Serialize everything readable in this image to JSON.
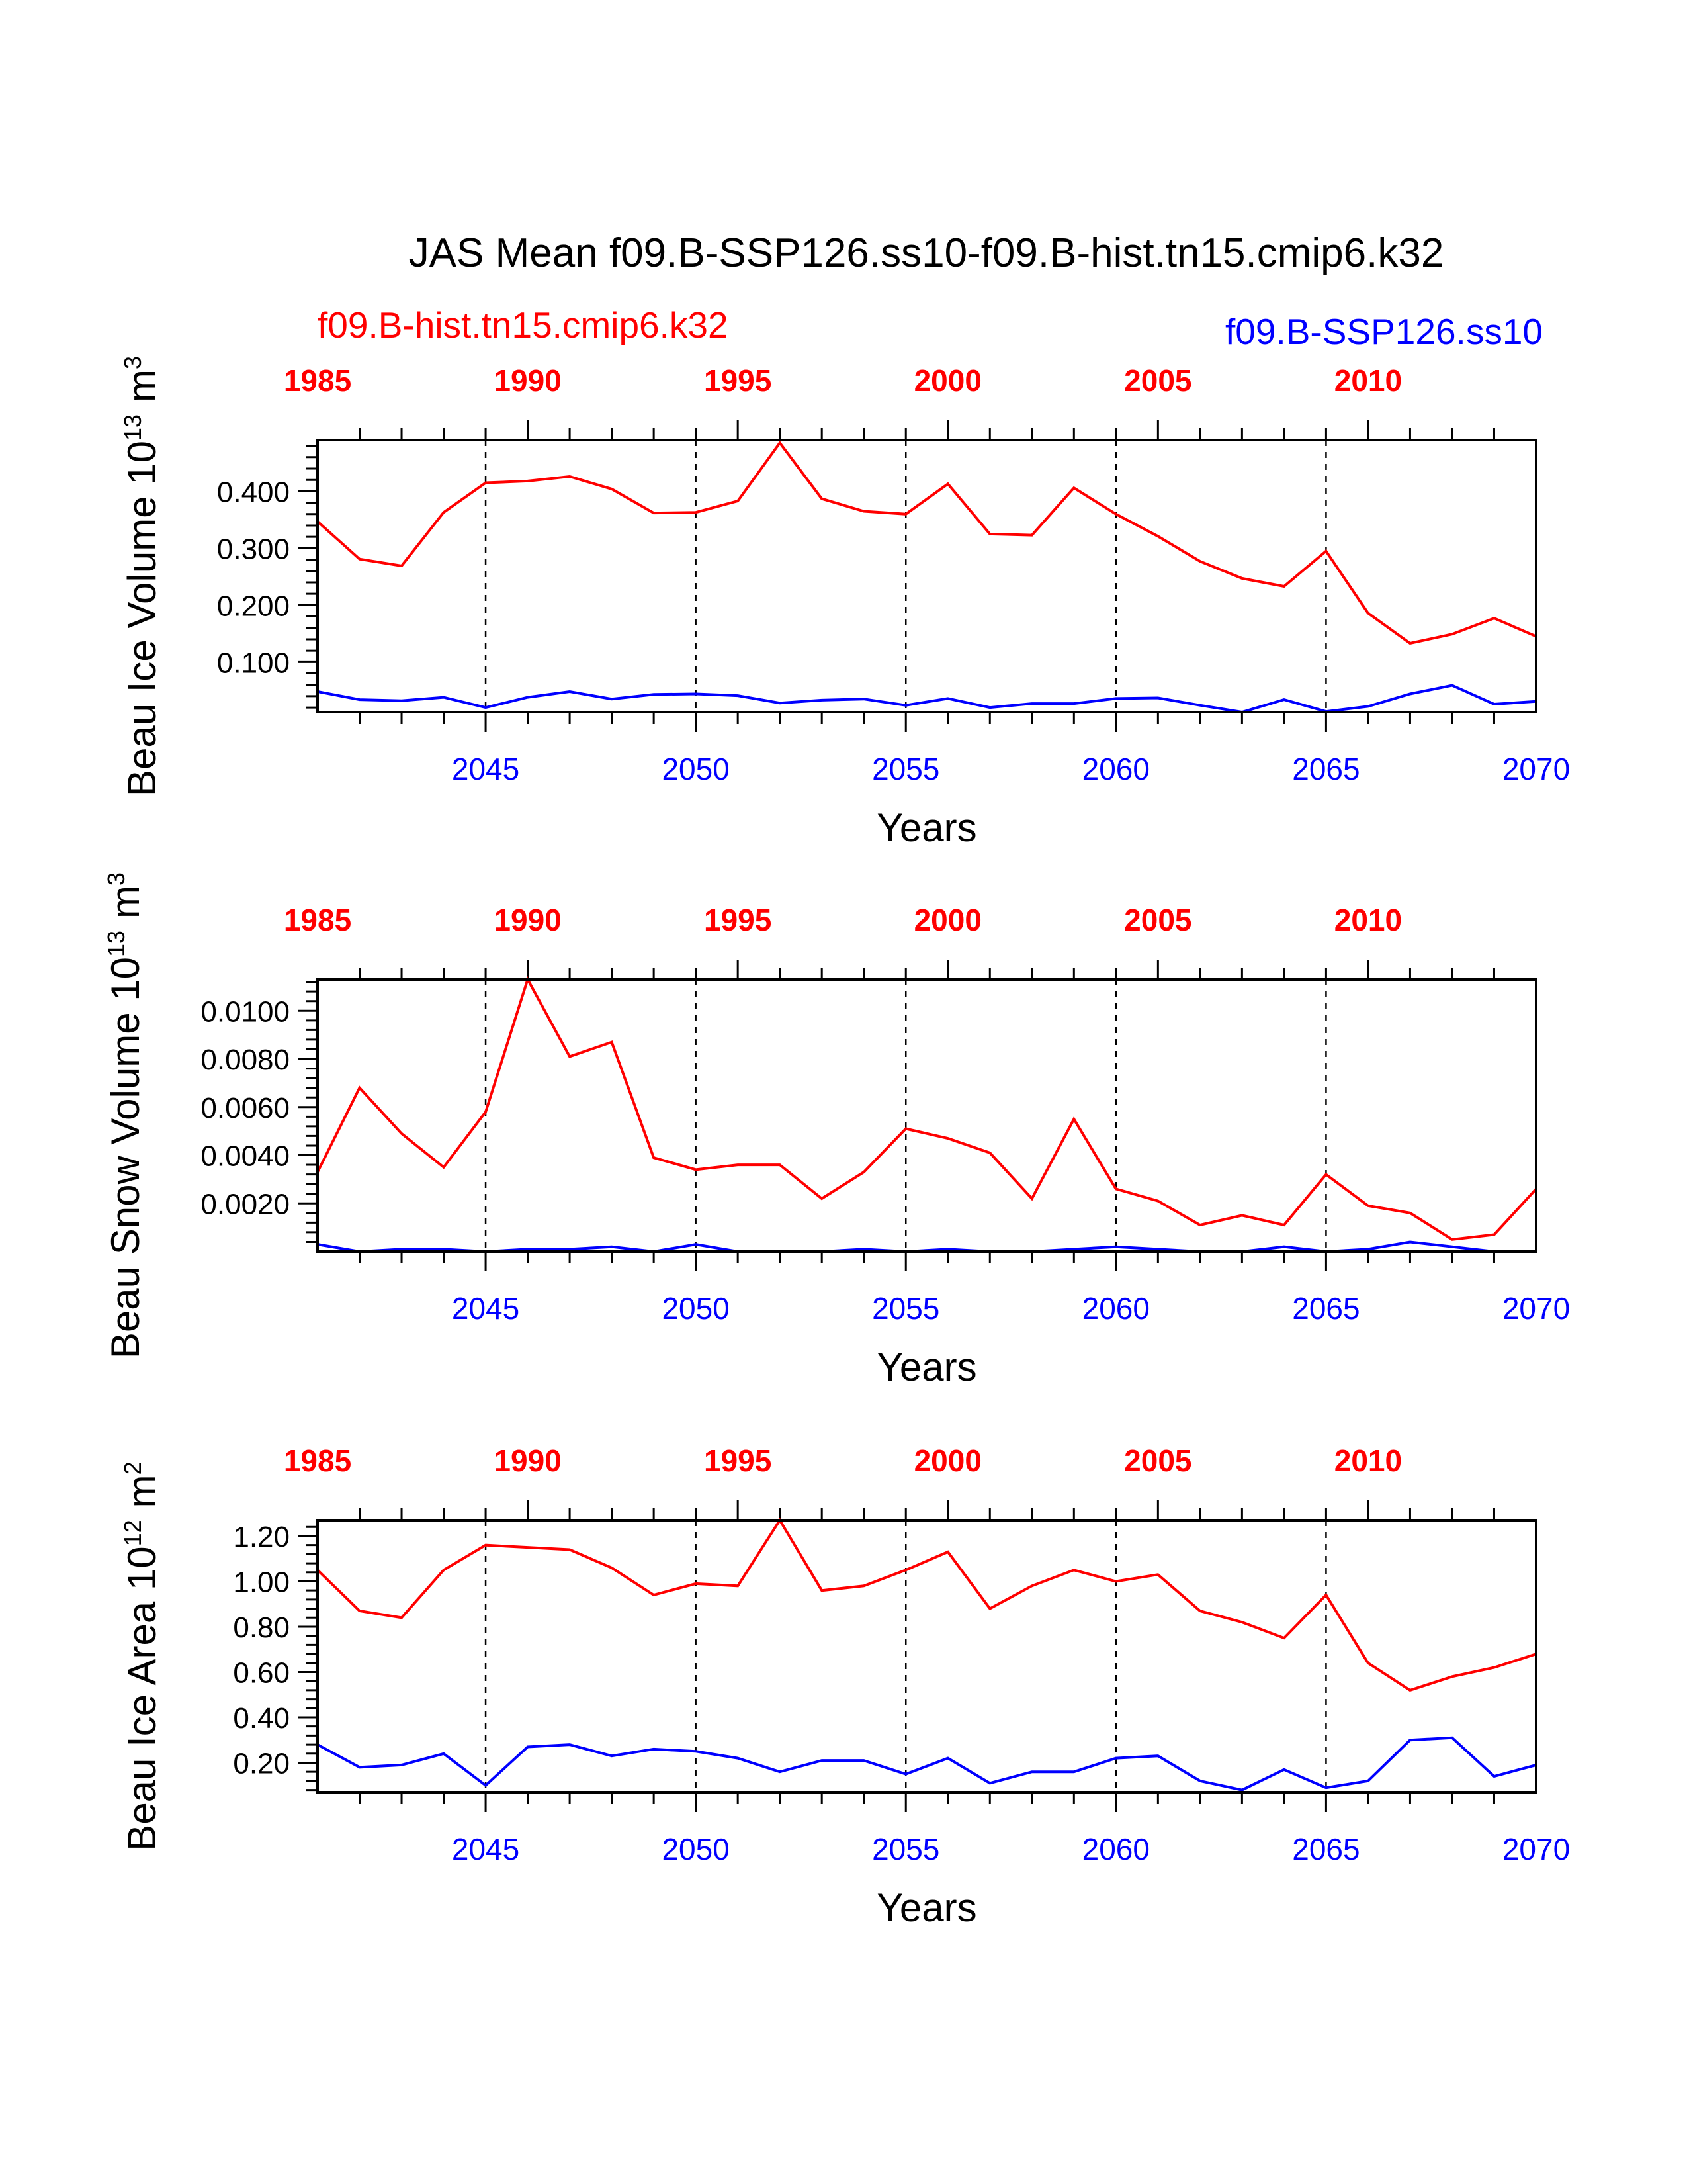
{
  "title": "JAS Mean f09.B-SSP126.ss10-f09.B-hist.tn15.cmip6.k32",
  "legend": {
    "left": "f09.B-hist.tn15.cmip6.k32",
    "right": "f09.B-SSP126.ss10"
  },
  "colors": {
    "hist": "#ff0000",
    "ssp": "#0000ff",
    "axis": "#000000"
  },
  "chart_data": [
    {
      "type": "line",
      "ylabel": "Beau Ice Volume 10",
      "ylabel_exp": "13",
      "ylabel_unit": "m",
      "ylabel_unit_exp": "3",
      "xlabel": "Years",
      "bottom_axis": {
        "range": [
          2041,
          2070
        ],
        "ticks": [
          2045,
          2050,
          2055,
          2060,
          2065,
          2070
        ],
        "tick_labels": [
          "2045",
          "2050",
          "2055",
          "2060",
          "2065",
          "2070"
        ]
      },
      "top_axis": {
        "range": [
          1985,
          2014
        ],
        "ticks": [
          1985,
          1990,
          1995,
          2000,
          2005,
          2010
        ],
        "tick_labels": [
          "1985",
          "1990",
          "1995",
          "2000",
          "2005",
          "2010"
        ]
      },
      "ylim": [
        0.012,
        0.49
      ],
      "yticks": [
        0.1,
        0.2,
        0.3,
        0.4
      ],
      "ytick_labels": [
        "0.100",
        "0.200",
        "0.300",
        "0.400"
      ],
      "yminor": 0.02,
      "grid": "dashed vertical lines at bottom-axis major ticks",
      "series": [
        {
          "name": "f09.B-hist.tn15.cmip6.k32",
          "axis": "top",
          "x": [
            1985,
            1986,
            1987,
            1988,
            1989,
            1990,
            1991,
            1992,
            1993,
            1994,
            1995,
            1996,
            1997,
            1998,
            1999,
            2000,
            2001,
            2002,
            2003,
            2004,
            2005,
            2006,
            2007,
            2008,
            2009,
            2010,
            2011,
            2012,
            2013,
            2014
          ],
          "values": [
            0.347,
            0.281,
            0.269,
            0.363,
            0.415,
            0.418,
            0.426,
            0.404,
            0.362,
            0.363,
            0.383,
            0.485,
            0.387,
            0.365,
            0.36,
            0.413,
            0.325,
            0.323,
            0.406,
            0.36,
            0.321,
            0.277,
            0.247,
            0.233,
            0.295,
            0.186,
            0.133,
            0.149,
            0.177,
            0.145
          ]
        },
        {
          "name": "f09.B-SSP126.ss10",
          "axis": "bottom",
          "x": [
            2041,
            2042,
            2043,
            2044,
            2045,
            2046,
            2047,
            2048,
            2049,
            2050,
            2051,
            2052,
            2053,
            2054,
            2055,
            2056,
            2057,
            2058,
            2059,
            2060,
            2061,
            2062,
            2063,
            2064,
            2065,
            2066,
            2067,
            2068,
            2069,
            2070
          ],
          "values": [
            0.048,
            0.034,
            0.032,
            0.038,
            0.02,
            0.038,
            0.048,
            0.035,
            0.043,
            0.044,
            0.041,
            0.028,
            0.033,
            0.035,
            0.024,
            0.036,
            0.02,
            0.027,
            0.027,
            0.036,
            0.037,
            0.024,
            0.012,
            0.034,
            0.013,
            0.022,
            0.044,
            0.059,
            0.026,
            0.031
          ]
        }
      ]
    },
    {
      "type": "line",
      "ylabel": "Beau Snow Volume 10",
      "ylabel_exp": "13",
      "ylabel_unit": "m",
      "ylabel_unit_exp": "3",
      "xlabel": "Years",
      "bottom_axis": {
        "range": [
          2041,
          2070
        ],
        "ticks": [
          2045,
          2050,
          2055,
          2060,
          2065,
          2070
        ],
        "tick_labels": [
          "2045",
          "2050",
          "2055",
          "2060",
          "2065",
          "2070"
        ]
      },
      "top_axis": {
        "range": [
          1985,
          2014
        ],
        "ticks": [
          1985,
          1990,
          1995,
          2000,
          2005,
          2010
        ],
        "tick_labels": [
          "1985",
          "1990",
          "1995",
          "2000",
          "2005",
          "2010"
        ]
      },
      "ylim": [
        0.0,
        0.0113
      ],
      "yticks": [
        0.002,
        0.004,
        0.006,
        0.008,
        0.01
      ],
      "ytick_labels": [
        "0.0020",
        "0.0040",
        "0.0060",
        "0.0080",
        "0.0100"
      ],
      "yminor": 0.0004,
      "grid": "dashed vertical lines at bottom-axis major ticks",
      "series": [
        {
          "name": "f09.B-hist.tn15.cmip6.k32",
          "axis": "top",
          "x": [
            1985,
            1986,
            1987,
            1988,
            1989,
            1990,
            1991,
            1992,
            1993,
            1994,
            1995,
            1996,
            1997,
            1998,
            1999,
            2000,
            2001,
            2002,
            2003,
            2004,
            2005,
            2006,
            2007,
            2008,
            2009,
            2010,
            2011,
            2012,
            2013,
            2014
          ],
          "values": [
            0.0033,
            0.0068,
            0.0049,
            0.0035,
            0.0058,
            0.0113,
            0.0081,
            0.0087,
            0.0039,
            0.0034,
            0.0036,
            0.0036,
            0.0022,
            0.0033,
            0.0051,
            0.0047,
            0.0041,
            0.0022,
            0.0055,
            0.0026,
            0.0021,
            0.0011,
            0.0015,
            0.0011,
            0.0032,
            0.0019,
            0.0016,
            0.0005,
            0.0007,
            0.0026
          ]
        },
        {
          "name": "f09.B-SSP126.ss10",
          "axis": "bottom",
          "x": [
            2041,
            2042,
            2043,
            2044,
            2045,
            2046,
            2047,
            2048,
            2049,
            2050,
            2051,
            2052,
            2053,
            2054,
            2055,
            2056,
            2057,
            2058,
            2059,
            2060,
            2061,
            2062,
            2063,
            2064,
            2065,
            2066,
            2067,
            2068,
            2069,
            2070
          ],
          "values": [
            0.0003,
            0.0,
            0.0001,
            0.0001,
            0.0,
            0.0001,
            0.0001,
            0.0002,
            0.0,
            0.0003,
            0.0,
            0.0,
            0.0,
            0.0001,
            0.0,
            0.0001,
            0.0,
            0.0,
            0.0001,
            0.0002,
            0.0001,
            0.0,
            0.0,
            0.0002,
            0.0,
            0.0001,
            0.0004,
            0.0002,
            0.0,
            0.0
          ]
        }
      ]
    },
    {
      "type": "line",
      "ylabel": "Beau Ice Area 10",
      "ylabel_exp": "12",
      "ylabel_unit": "m",
      "ylabel_unit_exp": "2",
      "xlabel": "Years",
      "bottom_axis": {
        "range": [
          2041,
          2070
        ],
        "ticks": [
          2045,
          2050,
          2055,
          2060,
          2065,
          2070
        ],
        "tick_labels": [
          "2045",
          "2050",
          "2055",
          "2060",
          "2065",
          "2070"
        ]
      },
      "top_axis": {
        "range": [
          1985,
          2014
        ],
        "ticks": [
          1985,
          1990,
          1995,
          2000,
          2005,
          2010
        ],
        "tick_labels": [
          "1985",
          "1990",
          "1995",
          "2000",
          "2005",
          "2010"
        ]
      },
      "ylim": [
        0.07,
        1.27
      ],
      "yticks": [
        0.2,
        0.4,
        0.6,
        0.8,
        1.0,
        1.2
      ],
      "ytick_labels": [
        "0.20",
        "0.40",
        "0.60",
        "0.80",
        "1.00",
        "1.20"
      ],
      "yminor": 0.04,
      "grid": "dashed vertical lines at bottom-axis major ticks",
      "series": [
        {
          "name": "f09.B-hist.tn15.cmip6.k32",
          "axis": "top",
          "x": [
            1985,
            1986,
            1987,
            1988,
            1989,
            1990,
            1991,
            1992,
            1993,
            1994,
            1995,
            1996,
            1997,
            1998,
            1999,
            2000,
            2001,
            2002,
            2003,
            2004,
            2005,
            2006,
            2007,
            2008,
            2009,
            2010,
            2011,
            2012,
            2013,
            2014
          ],
          "values": [
            1.05,
            0.87,
            0.84,
            1.05,
            1.16,
            1.15,
            1.14,
            1.06,
            0.94,
            0.99,
            0.98,
            1.27,
            0.96,
            0.98,
            1.05,
            1.13,
            0.88,
            0.98,
            1.05,
            1.0,
            1.03,
            0.87,
            0.82,
            0.75,
            0.94,
            0.64,
            0.52,
            0.58,
            0.62,
            0.68
          ]
        },
        {
          "name": "f09.B-SSP126.ss10",
          "axis": "bottom",
          "x": [
            2041,
            2042,
            2043,
            2044,
            2045,
            2046,
            2047,
            2048,
            2049,
            2050,
            2051,
            2052,
            2053,
            2054,
            2055,
            2056,
            2057,
            2058,
            2059,
            2060,
            2061,
            2062,
            2063,
            2064,
            2065,
            2066,
            2067,
            2068,
            2069,
            2070
          ],
          "values": [
            0.28,
            0.18,
            0.19,
            0.24,
            0.1,
            0.27,
            0.28,
            0.23,
            0.26,
            0.25,
            0.22,
            0.16,
            0.21,
            0.21,
            0.15,
            0.22,
            0.11,
            0.16,
            0.16,
            0.22,
            0.23,
            0.12,
            0.08,
            0.17,
            0.09,
            0.12,
            0.3,
            0.31,
            0.14,
            0.19
          ]
        }
      ]
    }
  ]
}
